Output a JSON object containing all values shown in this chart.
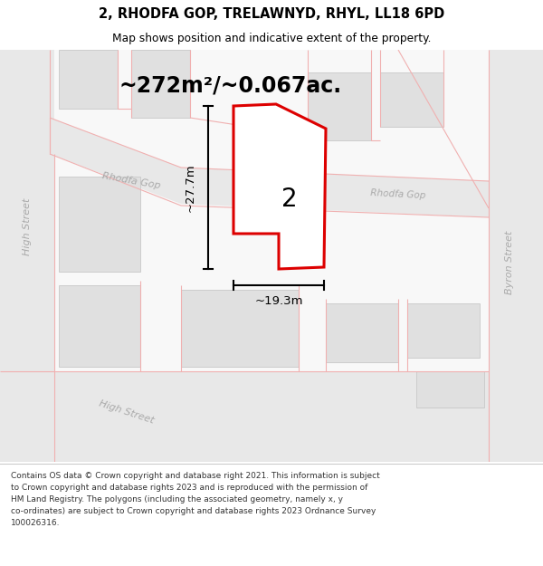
{
  "title": "2, RHODFA GOP, TRELAWNYD, RHYL, LL18 6PD",
  "subtitle": "Map shows position and indicative extent of the property.",
  "area_text": "~272m²/~0.067ac.",
  "dim1_text": "~27.7m",
  "dim2_text": "~19.3m",
  "property_number": "2",
  "footer_text": "Contains OS data © Crown copyright and database right 2021. This information is subject\nto Crown copyright and database rights 2023 and is reproduced with the permission of\nHM Land Registry. The polygons (including the associated geometry, namely x, y\nco-ordinates) are subject to Crown copyright and database rights 2023 Ordnance Survey\n100026316.",
  "map_bg": "#ffffff",
  "road_fill": "#e8e8e8",
  "building_fill": "#e0e0e0",
  "building_edge": "#c8c8c8",
  "property_fill": "#ffffff",
  "property_edge": "#dd0000",
  "road_line": "#f0b0b0",
  "street_label": "#aaaaaa",
  "dim_color": "#000000"
}
